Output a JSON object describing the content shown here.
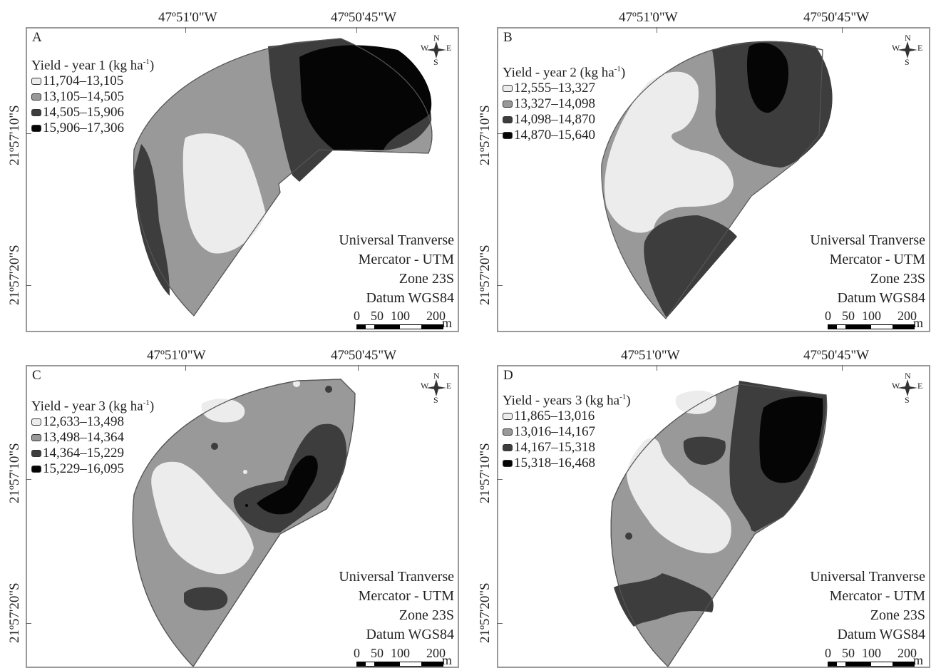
{
  "coordinates": {
    "lon_left": "47º51'0\"W",
    "lon_right": "47º50'45\"W",
    "lat_top": "21º57'10\"S",
    "lat_bottom": "21º57'20\"S"
  },
  "projection": {
    "line1": "Universal Tranverse",
    "line2": "Mercator - UTM",
    "line3": "Zone 23S",
    "line4": "Datum WGS84"
  },
  "scale_bar": {
    "l0": "0",
    "l50": "50",
    "l100": "100",
    "l200": "200",
    "unit": "m"
  },
  "compass": {
    "n": "N",
    "s": "S",
    "e": "E",
    "w": "W"
  },
  "colors": {
    "class1": "#ececec",
    "class2": "#999999",
    "class3": "#3d3d3d",
    "class4": "#050505",
    "frame": "#999999"
  },
  "panels": [
    {
      "letter": "A",
      "legend_title": "Yield - year 1 (kg ha",
      "legend_exp": "-1",
      "legend_close": ")",
      "classes": [
        "11,704–13,105",
        "13,105–14,505",
        "14,505–15,906",
        "15,906–17,306"
      ]
    },
    {
      "letter": "B",
      "legend_title": "Yield - year 2 (kg ha",
      "legend_exp": "-1",
      "legend_close": ")",
      "classes": [
        "12,555–13,327",
        "13,327–14,098",
        "14,098–14,870",
        "14,870–15,640"
      ]
    },
    {
      "letter": "C",
      "legend_title": "Yield - year 3 (kg ha",
      "legend_exp": "-1",
      "legend_close": ")",
      "classes": [
        "12,633–13,498",
        "13,498–14,364",
        "14,364–15,229",
        "15,229–16,095"
      ]
    },
    {
      "letter": "D",
      "legend_title": "Yield - years 3 (kg ha",
      "legend_exp": "-1",
      "legend_close": ")",
      "classes": [
        "11,865–13,016",
        "13,016–14,167",
        "14,167–15,318",
        "15,318–16,468"
      ]
    }
  ]
}
